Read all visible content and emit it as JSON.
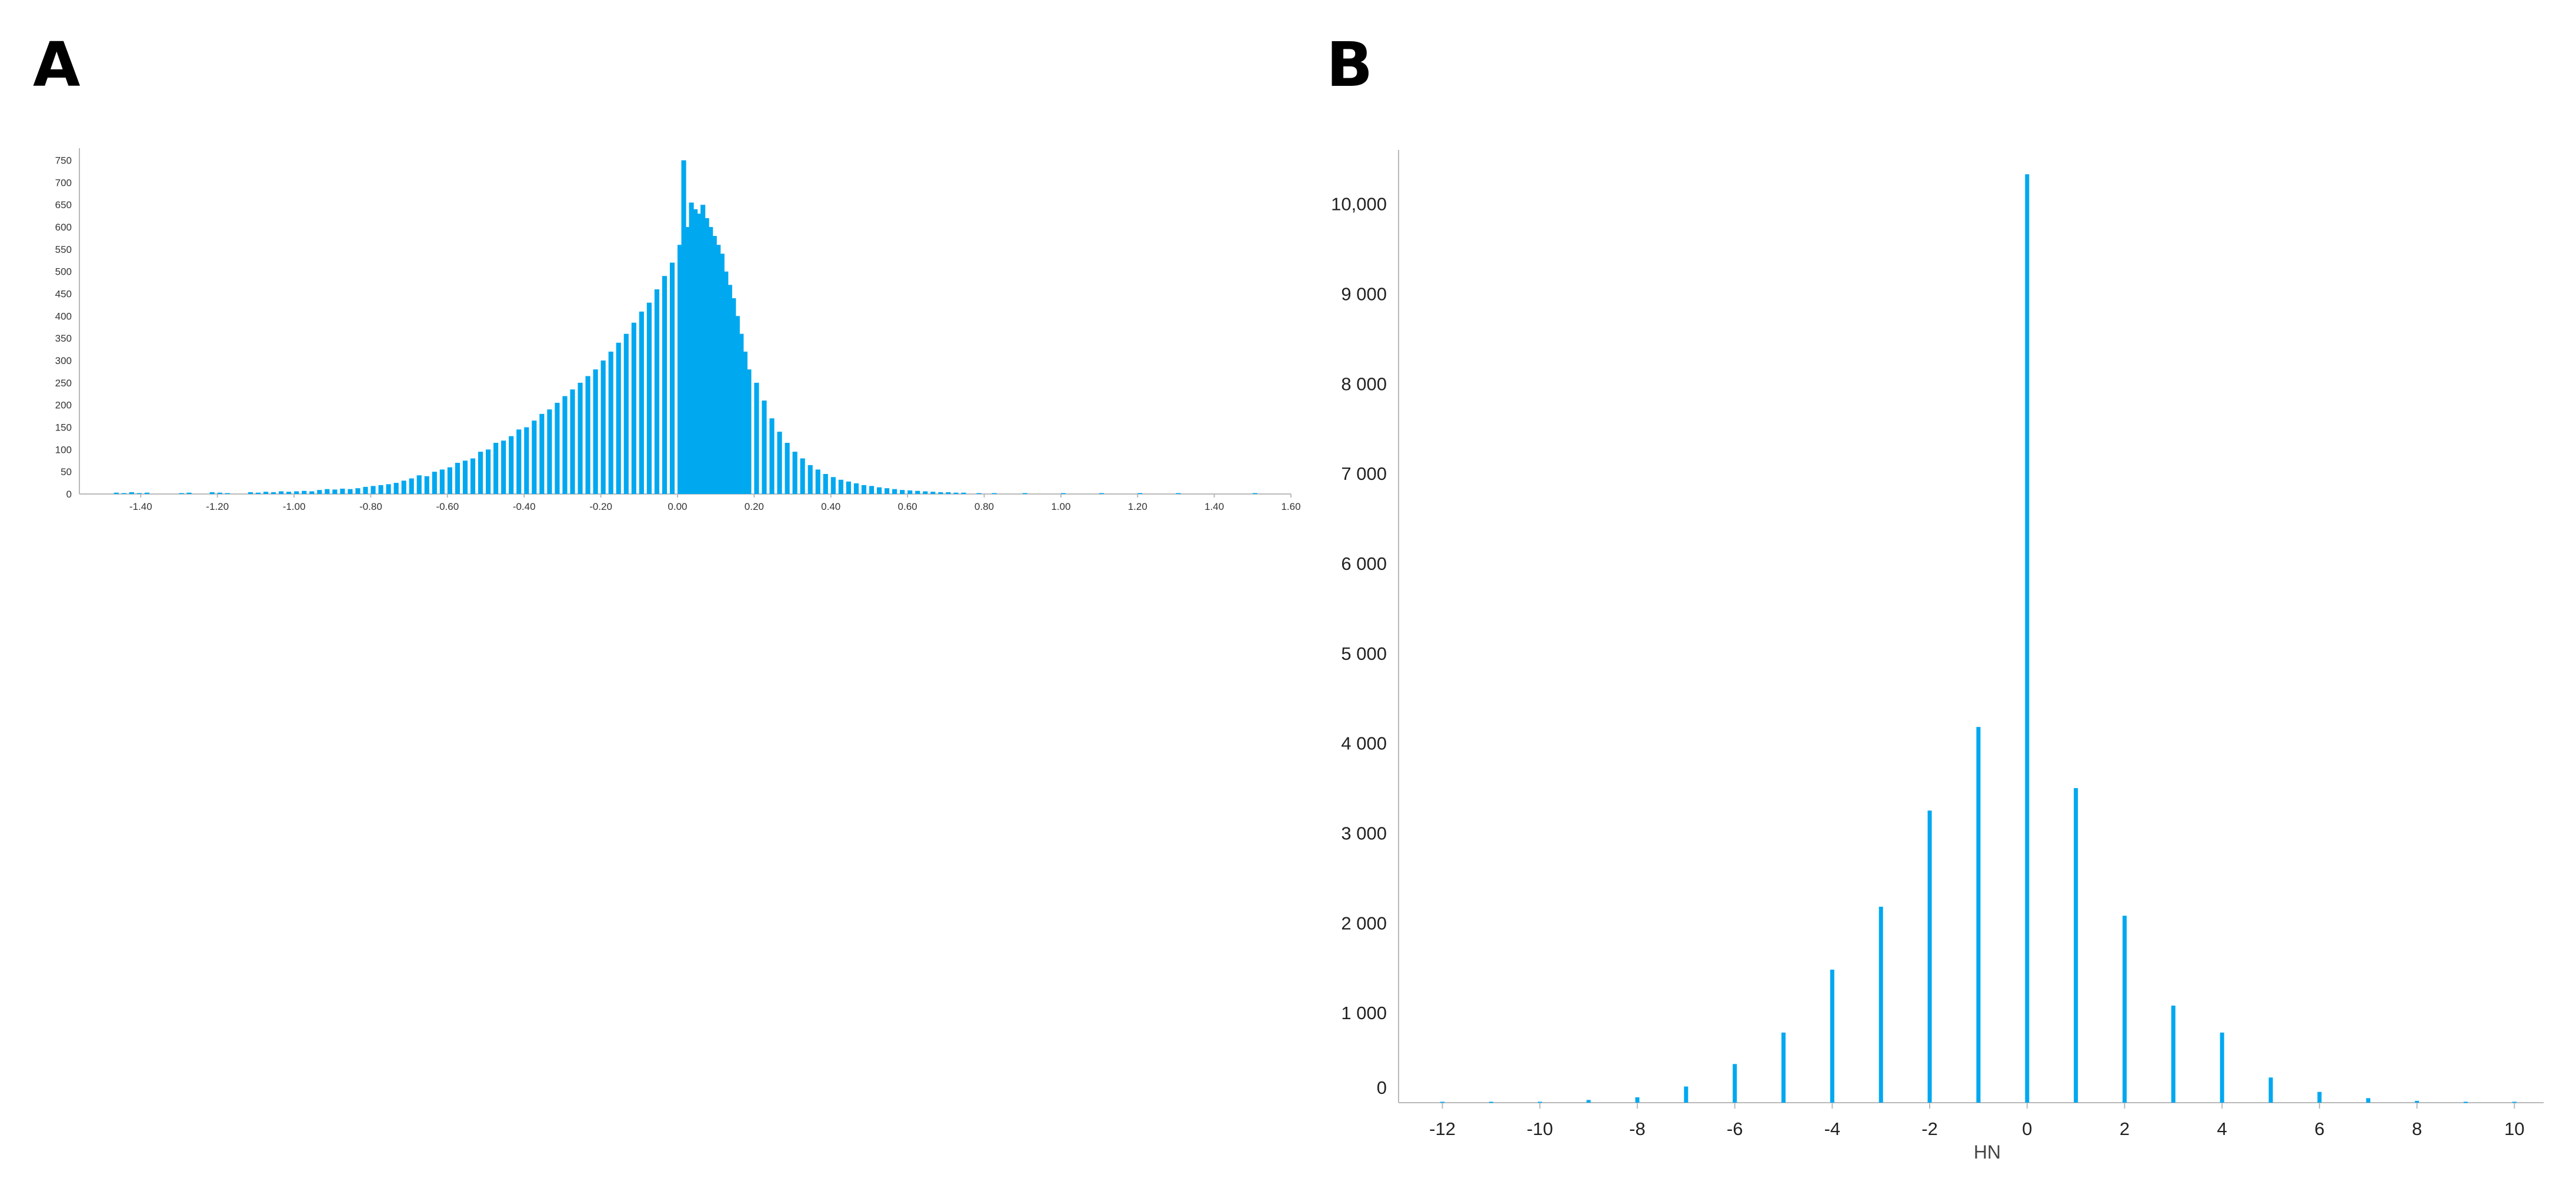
{
  "panels": {
    "a": {
      "label": "A"
    },
    "b": {
      "label": "B"
    }
  },
  "colors": {
    "bar": "#00A8F0",
    "axis": "#b9b9b9"
  },
  "chart_data": [
    {
      "type": "bar",
      "panel": "A",
      "title": "",
      "xlabel": "",
      "ylabel": "",
      "xlim": [
        -1.56,
        1.6
      ],
      "ylim": [
        0,
        760
      ],
      "bin_width": 0.0125,
      "xticks": [
        -1.4,
        -1.2,
        -1.0,
        -0.8,
        -0.6,
        -0.4,
        -0.2,
        0.0,
        0.2,
        0.4,
        0.6,
        0.8,
        1.0,
        1.2,
        1.4,
        1.6
      ],
      "xtick_labels": [
        "-1.40",
        "-1.20",
        "-1.00",
        "-0.80",
        "-0.60",
        "-0.40",
        "-0.20",
        "0.00",
        "0.20",
        "0.40",
        "0.60",
        "0.80",
        "1.00",
        "1.20",
        "1.40",
        "1.60"
      ],
      "yticks": [
        0,
        50,
        100,
        150,
        200,
        250,
        300,
        350,
        400,
        450,
        500,
        550,
        600,
        650,
        700,
        750
      ],
      "ytick_labels": [
        "0",
        "50",
        "100",
        "150",
        "200",
        "250",
        "300",
        "350",
        "400",
        "450",
        "500",
        "550",
        "600",
        "650",
        "700",
        "750"
      ],
      "grid": false,
      "legend": "none",
      "bins": [
        [
          -1.47,
          3
        ],
        [
          -1.45,
          2
        ],
        [
          -1.43,
          4
        ],
        [
          -1.41,
          2
        ],
        [
          -1.39,
          3
        ],
        [
          -1.3,
          2
        ],
        [
          -1.28,
          3
        ],
        [
          -1.22,
          4
        ],
        [
          -1.2,
          3
        ],
        [
          -1.18,
          2
        ],
        [
          -1.12,
          4
        ],
        [
          -1.1,
          3
        ],
        [
          -1.08,
          5
        ],
        [
          -1.06,
          4
        ],
        [
          -1.04,
          6
        ],
        [
          -1.02,
          5
        ],
        [
          -1.0,
          6
        ],
        [
          -0.98,
          7
        ],
        [
          -0.96,
          6
        ],
        [
          -0.94,
          9
        ],
        [
          -0.92,
          11
        ],
        [
          -0.9,
          10
        ],
        [
          -0.88,
          12
        ],
        [
          -0.86,
          11
        ],
        [
          -0.84,
          13
        ],
        [
          -0.82,
          16
        ],
        [
          -0.8,
          18
        ],
        [
          -0.78,
          20
        ],
        [
          -0.76,
          22
        ],
        [
          -0.74,
          25
        ],
        [
          -0.72,
          30
        ],
        [
          -0.7,
          35
        ],
        [
          -0.68,
          42
        ],
        [
          -0.66,
          40
        ],
        [
          -0.64,
          50
        ],
        [
          -0.62,
          55
        ],
        [
          -0.6,
          60
        ],
        [
          -0.58,
          70
        ],
        [
          -0.56,
          75
        ],
        [
          -0.54,
          80
        ],
        [
          -0.52,
          95
        ],
        [
          -0.5,
          100
        ],
        [
          -0.48,
          115
        ],
        [
          -0.46,
          120
        ],
        [
          -0.44,
          130
        ],
        [
          -0.42,
          145
        ],
        [
          -0.4,
          150
        ],
        [
          -0.38,
          165
        ],
        [
          -0.36,
          180
        ],
        [
          -0.34,
          190
        ],
        [
          -0.32,
          205
        ],
        [
          -0.3,
          220
        ],
        [
          -0.28,
          235
        ],
        [
          -0.26,
          250
        ],
        [
          -0.24,
          265
        ],
        [
          -0.22,
          280
        ],
        [
          -0.2,
          300
        ],
        [
          -0.18,
          320
        ],
        [
          -0.16,
          340
        ],
        [
          -0.14,
          360
        ],
        [
          -0.12,
          385
        ],
        [
          -0.1,
          410
        ],
        [
          -0.08,
          430
        ],
        [
          -0.06,
          460
        ],
        [
          -0.04,
          490
        ],
        [
          -0.02,
          520
        ],
        [
          0.0,
          560
        ],
        [
          0.01,
          750
        ],
        [
          0.02,
          600
        ],
        [
          0.03,
          655
        ],
        [
          0.04,
          640
        ],
        [
          0.05,
          630
        ],
        [
          0.06,
          650
        ],
        [
          0.07,
          620
        ],
        [
          0.08,
          600
        ],
        [
          0.09,
          580
        ],
        [
          0.1,
          560
        ],
        [
          0.11,
          540
        ],
        [
          0.12,
          500
        ],
        [
          0.13,
          470
        ],
        [
          0.14,
          440
        ],
        [
          0.15,
          400
        ],
        [
          0.16,
          360
        ],
        [
          0.17,
          320
        ],
        [
          0.18,
          280
        ],
        [
          0.2,
          250
        ],
        [
          0.22,
          210
        ],
        [
          0.24,
          170
        ],
        [
          0.26,
          140
        ],
        [
          0.28,
          115
        ],
        [
          0.3,
          95
        ],
        [
          0.32,
          80
        ],
        [
          0.34,
          65
        ],
        [
          0.36,
          55
        ],
        [
          0.38,
          45
        ],
        [
          0.4,
          38
        ],
        [
          0.42,
          32
        ],
        [
          0.44,
          28
        ],
        [
          0.46,
          24
        ],
        [
          0.48,
          20
        ],
        [
          0.5,
          18
        ],
        [
          0.52,
          15
        ],
        [
          0.54,
          13
        ],
        [
          0.56,
          11
        ],
        [
          0.58,
          9
        ],
        [
          0.6,
          8
        ],
        [
          0.62,
          7
        ],
        [
          0.64,
          6
        ],
        [
          0.66,
          5
        ],
        [
          0.68,
          4
        ],
        [
          0.7,
          4
        ],
        [
          0.72,
          3
        ],
        [
          0.74,
          3
        ],
        [
          0.78,
          2
        ],
        [
          0.82,
          2
        ],
        [
          0.9,
          2
        ],
        [
          1.0,
          2
        ],
        [
          1.1,
          2
        ],
        [
          1.2,
          2
        ],
        [
          1.3,
          2
        ],
        [
          1.5,
          2
        ]
      ]
    },
    {
      "type": "bar",
      "panel": "B",
      "title": "",
      "xlabel": "HN",
      "ylabel": "",
      "xlim": [
        -12.9,
        10.6
      ],
      "ylim": [
        0,
        10600
      ],
      "categories": [
        -12,
        -11,
        -10,
        -9,
        -8,
        -7,
        -6,
        -5,
        -4,
        -3,
        -2,
        -1,
        0,
        1,
        2,
        3,
        4,
        5,
        6,
        7,
        8,
        9,
        10
      ],
      "values": [
        10,
        10,
        10,
        30,
        60,
        180,
        430,
        780,
        1480,
        2180,
        3250,
        4180,
        10330,
        3500,
        2080,
        1080,
        780,
        280,
        120,
        50,
        20,
        10,
        10
      ],
      "xticks": [
        -12,
        -10,
        -8,
        -6,
        -4,
        -2,
        0,
        2,
        4,
        6,
        8,
        10
      ],
      "xtick_labels": [
        "-12",
        "-10",
        "-8",
        "-6",
        "-4",
        "-2",
        "0",
        "2",
        "4",
        "6",
        "8",
        "10"
      ],
      "yticks": [
        0,
        1000,
        2000,
        3000,
        4000,
        5000,
        6000,
        7000,
        8000,
        9000,
        10000
      ],
      "ytick_labels": [
        "0",
        "1 000",
        "2 000",
        "3 000",
        "4 000",
        "5 000",
        "6 000",
        "7 000",
        "8 000",
        "9 000",
        "10,000"
      ],
      "grid": false,
      "legend": "none"
    }
  ]
}
